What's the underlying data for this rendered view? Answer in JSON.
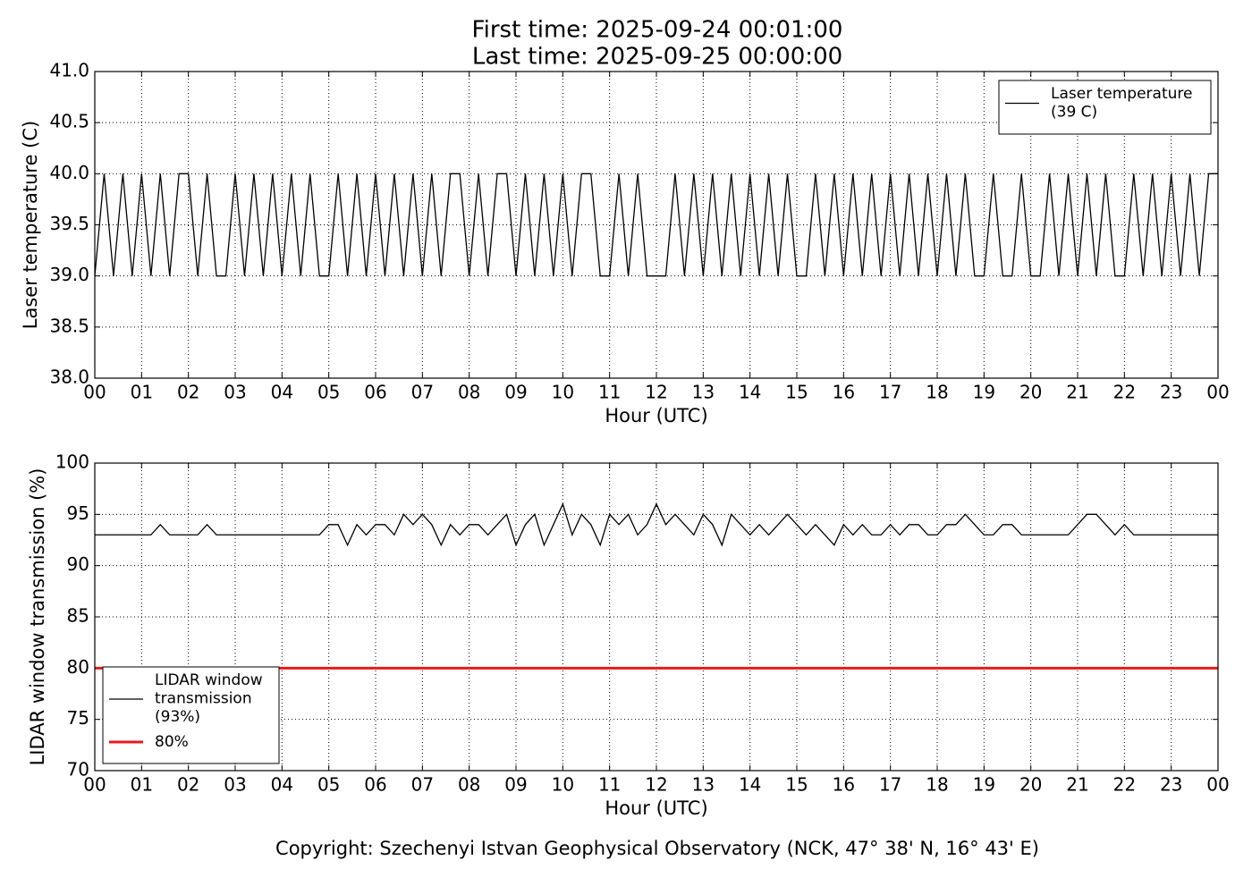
{
  "figure": {
    "title": [
      "First time: 2025-09-24 00:01:00",
      "Last time: 2025-09-25 00:00:00"
    ],
    "footer": "Copyright: Szechenyi Istvan Geophysical Observatory (NCK, 47° 38' N, 16° 43' E)"
  },
  "chart_data": [
    {
      "type": "line",
      "xlabel": "Hour (UTC)",
      "ylabel": "Laser temperature (C)",
      "xlim": [
        0,
        24
      ],
      "xticks": [
        {
          "value": 0,
          "label": "00"
        },
        {
          "value": 1,
          "label": "01"
        },
        {
          "value": 2,
          "label": "02"
        },
        {
          "value": 3,
          "label": "03"
        },
        {
          "value": 4,
          "label": "04"
        },
        {
          "value": 5,
          "label": "05"
        },
        {
          "value": 6,
          "label": "06"
        },
        {
          "value": 7,
          "label": "07"
        },
        {
          "value": 8,
          "label": "08"
        },
        {
          "value": 9,
          "label": "09"
        },
        {
          "value": 10,
          "label": "10"
        },
        {
          "value": 11,
          "label": "11"
        },
        {
          "value": 12,
          "label": "12"
        },
        {
          "value": 13,
          "label": "13"
        },
        {
          "value": 14,
          "label": "14"
        },
        {
          "value": 15,
          "label": "15"
        },
        {
          "value": 16,
          "label": "16"
        },
        {
          "value": 17,
          "label": "17"
        },
        {
          "value": 18,
          "label": "18"
        },
        {
          "value": 19,
          "label": "19"
        },
        {
          "value": 20,
          "label": "20"
        },
        {
          "value": 21,
          "label": "21"
        },
        {
          "value": 22,
          "label": "22"
        },
        {
          "value": 23,
          "label": "23"
        },
        {
          "value": 24,
          "label": "00"
        }
      ],
      "ylim": [
        38,
        41
      ],
      "yticks": [
        {
          "value": 38,
          "label": "38.0"
        },
        {
          "value": 38.5,
          "label": "38.5"
        },
        {
          "value": 39,
          "label": "39.0"
        },
        {
          "value": 39.5,
          "label": "39.5"
        },
        {
          "value": 40,
          "label": "40.0"
        },
        {
          "value": 40.5,
          "label": "40.5"
        },
        {
          "value": 41,
          "label": "41.0"
        }
      ],
      "grid": true,
      "legend": "upper right",
      "x": [
        0,
        0.2,
        0.4,
        0.6,
        0.8,
        1,
        1.2,
        1.4,
        1.6,
        1.8,
        2,
        2.2,
        2.4,
        2.6,
        2.8,
        3,
        3.2,
        3.4,
        3.6,
        3.8,
        4,
        4.2,
        4.4,
        4.6,
        4.8,
        5,
        5.2,
        5.4,
        5.6,
        5.8,
        6,
        6.2,
        6.4,
        6.6,
        6.8,
        7,
        7.2,
        7.4,
        7.6,
        7.8,
        8,
        8.2,
        8.4,
        8.6,
        8.8,
        9,
        9.2,
        9.4,
        9.6,
        9.8,
        10,
        10.2,
        10.4,
        10.6,
        10.8,
        11,
        11.2,
        11.4,
        11.6,
        11.8,
        12,
        12.2,
        12.4,
        12.6,
        12.8,
        13,
        13.2,
        13.4,
        13.6,
        13.8,
        14,
        14.2,
        14.4,
        14.6,
        14.8,
        15,
        15.2,
        15.4,
        15.6,
        15.8,
        16,
        16.2,
        16.4,
        16.6,
        16.8,
        17,
        17.2,
        17.4,
        17.6,
        17.8,
        18,
        18.2,
        18.4,
        18.6,
        18.8,
        19,
        19.2,
        19.4,
        19.6,
        19.8,
        20,
        20.2,
        20.4,
        20.6,
        20.8,
        21,
        21.2,
        21.4,
        21.6,
        21.8,
        22,
        22.2,
        22.4,
        22.6,
        22.8,
        23,
        23.2,
        23.4,
        23.6,
        23.8,
        24
      ],
      "series": [
        {
          "name": "Laser temperature\n(39 C)",
          "color": "#000000",
          "values": [
            39,
            40,
            39,
            40,
            39,
            40,
            39,
            40,
            39,
            40,
            40,
            39,
            40,
            39,
            39,
            40,
            39,
            40,
            39,
            40,
            39,
            40,
            39,
            40,
            39,
            39,
            40,
            39,
            40,
            39,
            40,
            39,
            40,
            39,
            40,
            39,
            40,
            39,
            40,
            40,
            39,
            40,
            39,
            40,
            40,
            39,
            40,
            39,
            40,
            39,
            40,
            39,
            40,
            40,
            39,
            39,
            40,
            39,
            40,
            39,
            39,
            39,
            40,
            39,
            40,
            39,
            40,
            39,
            40,
            39,
            40,
            39,
            40,
            39,
            40,
            39,
            39,
            40,
            39,
            40,
            39,
            40,
            39,
            40,
            39,
            40,
            39,
            40,
            39,
            40,
            39,
            40,
            39,
            40,
            39,
            39,
            40,
            39,
            39,
            40,
            39,
            39,
            40,
            39,
            40,
            39,
            40,
            39,
            40,
            39,
            39,
            40,
            39,
            40,
            39,
            40,
            39,
            40,
            39,
            40,
            40
          ]
        }
      ]
    },
    {
      "type": "line",
      "xlabel": "Hour (UTC)",
      "ylabel": "LIDAR window transmission (%)",
      "xlim": [
        0,
        24
      ],
      "xticks": [
        {
          "value": 0,
          "label": "00"
        },
        {
          "value": 1,
          "label": "01"
        },
        {
          "value": 2,
          "label": "02"
        },
        {
          "value": 3,
          "label": "03"
        },
        {
          "value": 4,
          "label": "04"
        },
        {
          "value": 5,
          "label": "05"
        },
        {
          "value": 6,
          "label": "06"
        },
        {
          "value": 7,
          "label": "07"
        },
        {
          "value": 8,
          "label": "08"
        },
        {
          "value": 9,
          "label": "09"
        },
        {
          "value": 10,
          "label": "10"
        },
        {
          "value": 11,
          "label": "11"
        },
        {
          "value": 12,
          "label": "12"
        },
        {
          "value": 13,
          "label": "13"
        },
        {
          "value": 14,
          "label": "14"
        },
        {
          "value": 15,
          "label": "15"
        },
        {
          "value": 16,
          "label": "16"
        },
        {
          "value": 17,
          "label": "17"
        },
        {
          "value": 18,
          "label": "18"
        },
        {
          "value": 19,
          "label": "19"
        },
        {
          "value": 20,
          "label": "20"
        },
        {
          "value": 21,
          "label": "21"
        },
        {
          "value": 22,
          "label": "22"
        },
        {
          "value": 23,
          "label": "23"
        },
        {
          "value": 24,
          "label": "00"
        }
      ],
      "ylim": [
        70,
        100
      ],
      "yticks": [
        70,
        75,
        80,
        85,
        90,
        95,
        100
      ],
      "grid": true,
      "legend": "lower left",
      "x": [
        0,
        0.2,
        0.4,
        0.6,
        0.8,
        1,
        1.2,
        1.4,
        1.6,
        1.8,
        2,
        2.2,
        2.4,
        2.6,
        2.8,
        3,
        3.2,
        3.4,
        3.6,
        3.8,
        4,
        4.2,
        4.4,
        4.6,
        4.8,
        5,
        5.2,
        5.4,
        5.6,
        5.8,
        6,
        6.2,
        6.4,
        6.6,
        6.8,
        7,
        7.2,
        7.4,
        7.6,
        7.8,
        8,
        8.2,
        8.4,
        8.6,
        8.8,
        9,
        9.2,
        9.4,
        9.6,
        9.8,
        10,
        10.2,
        10.4,
        10.6,
        10.8,
        11,
        11.2,
        11.4,
        11.6,
        11.8,
        12,
        12.2,
        12.4,
        12.6,
        12.8,
        13,
        13.2,
        13.4,
        13.6,
        13.8,
        14,
        14.2,
        14.4,
        14.6,
        14.8,
        15,
        15.2,
        15.4,
        15.6,
        15.8,
        16,
        16.2,
        16.4,
        16.6,
        16.8,
        17,
        17.2,
        17.4,
        17.6,
        17.8,
        18,
        18.2,
        18.4,
        18.6,
        18.8,
        19,
        19.2,
        19.4,
        19.6,
        19.8,
        20,
        20.2,
        20.4,
        20.6,
        20.8,
        21,
        21.2,
        21.4,
        21.6,
        21.8,
        22,
        22.2,
        22.4,
        22.6,
        22.8,
        23,
        23.2,
        23.4,
        23.6,
        23.8,
        24
      ],
      "series": [
        {
          "name": "LIDAR window\ntransmission\n(93%)",
          "color": "#000000",
          "values": [
            93,
            93,
            93,
            93,
            93,
            93,
            93,
            94,
            93,
            93,
            93,
            93,
            94,
            93,
            93,
            93,
            93,
            93,
            93,
            93,
            93,
            93,
            93,
            93,
            93,
            94,
            94,
            92,
            94,
            93,
            94,
            94,
            93,
            95,
            94,
            95,
            94,
            92,
            94,
            93,
            94,
            94,
            93,
            94,
            95,
            92,
            94,
            95,
            92,
            94,
            96,
            93,
            95,
            94,
            92,
            95,
            94,
            95,
            93,
            94,
            96,
            94,
            95,
            94,
            93,
            95,
            94,
            92,
            95,
            94,
            93,
            94,
            93,
            94,
            95,
            94,
            93,
            94,
            93,
            92,
            94,
            93,
            94,
            93,
            93,
            94,
            93,
            94,
            94,
            93,
            93,
            94,
            94,
            95,
            94,
            93,
            93,
            94,
            94,
            93,
            93,
            93,
            93,
            93,
            93,
            94,
            95,
            95,
            94,
            93,
            94,
            93,
            93,
            93,
            93,
            93,
            93,
            93,
            93,
            93,
            93
          ]
        }
      ],
      "hlines": [
        {
          "name": "80%",
          "value": 80,
          "color": "#e41a1c"
        }
      ]
    }
  ]
}
